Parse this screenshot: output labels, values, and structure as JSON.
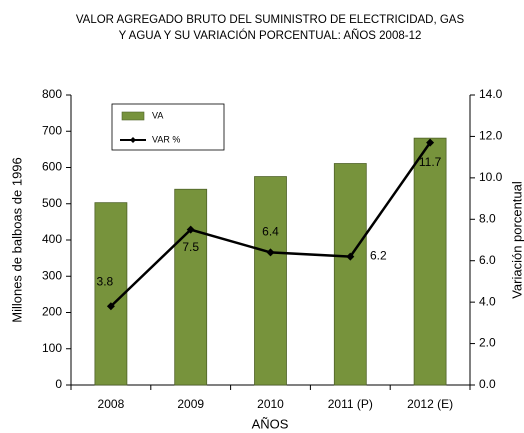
{
  "chart_data": {
    "type": "bar",
    "title": [
      "VALOR AGREGADO BRUTO DEL SUMINISTRO DE ELECTRICIDAD, GAS",
      "Y AGUA Y SU VARIACIÓN  PORCENTUAL: AÑOS  2008-12"
    ],
    "xlabel": "AÑOS",
    "ylabel": "Millones de balboas de 1996",
    "y2label": "Variación porcentual",
    "categories": [
      "2008",
      "2009",
      "2010",
      "2011 (P)",
      "2012 (E)"
    ],
    "series": [
      {
        "name": "VA",
        "type": "bar",
        "color": "#77933c",
        "values": [
          503,
          540,
          575,
          611,
          681
        ]
      },
      {
        "name": "VAR %",
        "type": "line",
        "axis": "y2",
        "color": "#000000",
        "values": [
          3.8,
          7.5,
          6.4,
          6.2,
          11.7
        ]
      }
    ],
    "ylim": [
      0,
      800
    ],
    "yticks": [
      0,
      100,
      200,
      300,
      400,
      500,
      600,
      700,
      800
    ],
    "y2lim": [
      0,
      14
    ],
    "y2ticks": [
      {
        "value": 0,
        "label": "0.0"
      },
      {
        "value": 2,
        "label": "2.0"
      },
      {
        "value": 4,
        "label": "4.0"
      },
      {
        "value": 6,
        "label": "6.0"
      },
      {
        "value": 8,
        "label": "8.0"
      },
      {
        "value": 10,
        "label": "10.0"
      },
      {
        "value": 12,
        "label": "12.0"
      },
      {
        "value": 14,
        "label": "14.0"
      }
    ],
    "legend": "upper left",
    "grid": false
  }
}
